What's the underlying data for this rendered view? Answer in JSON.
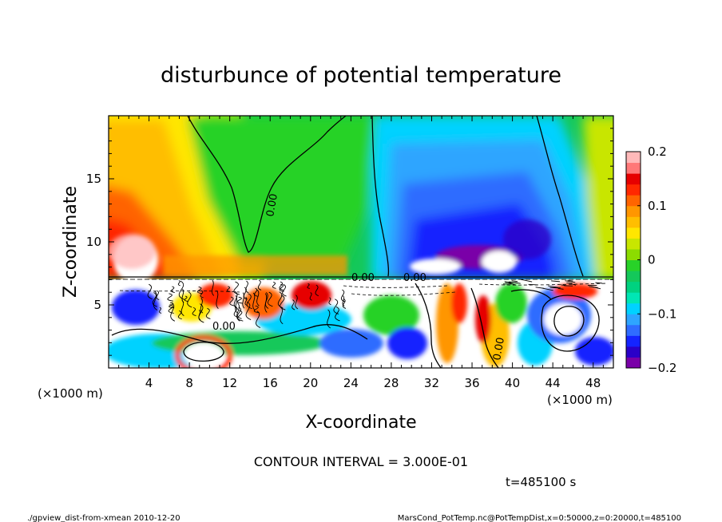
{
  "chart_data": {
    "type": "heatmap",
    "title": "disturbunce of potential temperature",
    "xlabel": "X-coordinate",
    "ylabel": "Z-coordinate",
    "x_unit_left": "(×1000 m)",
    "x_unit_right": "(×1000 m)",
    "x_ticks": [
      "4",
      "8",
      "12",
      "16",
      "20",
      "24",
      "28",
      "32",
      "36",
      "40",
      "44",
      "48"
    ],
    "y_ticks": [
      "5",
      "10",
      "15"
    ],
    "xlim": [
      0,
      50
    ],
    "ylim": [
      0,
      20
    ],
    "colorbar": {
      "min": -0.2,
      "max": 0.2,
      "tick_labels": [
        "0.2",
        "0.1",
        "0",
        "−0.1",
        "−0.2"
      ],
      "colors": [
        "#7a00a8",
        "#2a00c8",
        "#1424ff",
        "#2f6cff",
        "#2ea5ff",
        "#00d2ff",
        "#00e6b4",
        "#00d280",
        "#14c85a",
        "#28d228",
        "#8cdc00",
        "#c8e600",
        "#ffe600",
        "#ffbe00",
        "#ff9600",
        "#ff6400",
        "#ff2800",
        "#e60000",
        "#ff7878",
        "#ffb9b9"
      ]
    },
    "contour_labels": [
      "0.00",
      "0.00",
      "0.00",
      "0.00",
      "0.00"
    ],
    "contour_interval_text": "CONTOUR INTERVAL = 3.000E-01",
    "time_text": "t=485100 s"
  },
  "footer": {
    "left": "./gpview_dist-from-xmean  2010-12-20",
    "right": "MarsCond_PotTemp.nc@PotTempDist,x=0:50000,z=0:20000,t=485100"
  }
}
